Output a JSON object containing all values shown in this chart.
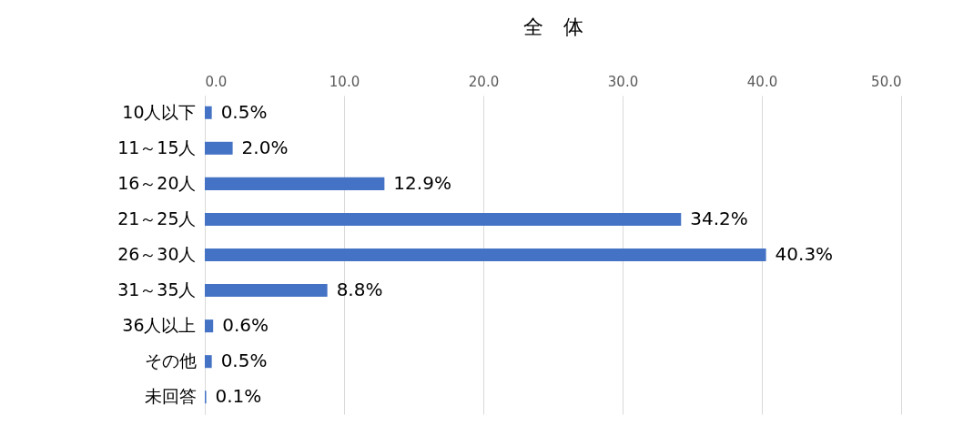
{
  "chart_data": {
    "type": "bar",
    "title": "全　体",
    "orientation": "horizontal",
    "categories": [
      "10人以下",
      "11～15人",
      "16～20人",
      "21～25人",
      "26～30人",
      "31～35人",
      "36人以上",
      "その他",
      "未回答"
    ],
    "values": [
      0.5,
      2.0,
      12.9,
      34.2,
      40.3,
      8.8,
      0.6,
      0.5,
      0.1
    ],
    "value_labels": [
      "0.5%",
      "2.0%",
      "12.9%",
      "34.2%",
      "40.3%",
      "8.8%",
      "0.6%",
      "0.5%",
      "0.1%"
    ],
    "color": "#4472c4",
    "xlim": [
      0,
      50
    ],
    "xticks": [
      {
        "value": 0,
        "label": "0.0"
      },
      {
        "value": 10,
        "label": "10.0"
      },
      {
        "value": 20,
        "label": "20.0"
      },
      {
        "value": 30,
        "label": "30.0"
      },
      {
        "value": 40,
        "label": "40.0"
      },
      {
        "value": 50,
        "label": "50.0"
      }
    ],
    "grid": true
  }
}
